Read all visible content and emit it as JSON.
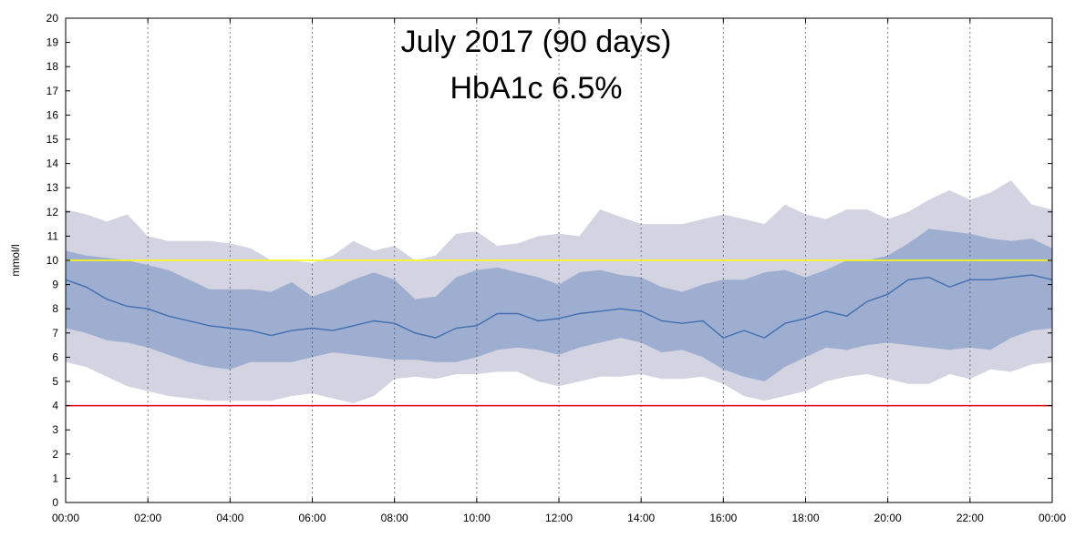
{
  "chart_data": {
    "type": "area",
    "title": "July 2017 (90 days)",
    "subtitle": "HbA1c 6.5%",
    "xlabel": "",
    "ylabel": "mmol/l",
    "xlim": [
      0,
      24
    ],
    "ylim": [
      0,
      20
    ],
    "x_ticks": [
      "00:00",
      "02:00",
      "04:00",
      "06:00",
      "08:00",
      "10:00",
      "12:00",
      "14:00",
      "16:00",
      "18:00",
      "20:00",
      "22:00",
      "00:00"
    ],
    "y_ticks": [
      0,
      1,
      2,
      3,
      4,
      5,
      6,
      7,
      8,
      9,
      10,
      11,
      12,
      13,
      14,
      15,
      16,
      17,
      18,
      19,
      20
    ],
    "grid": "vertical dotted lines every 2 hours",
    "reference_lines": [
      {
        "y": 10,
        "color": "#ffff00"
      },
      {
        "y": 4,
        "color": "#dd0000"
      }
    ],
    "colors": {
      "outer_band": "#d3d3e2",
      "inner_band": "#9eaed0",
      "median": "#3f6fb0"
    },
    "x": [
      0,
      0.5,
      1,
      1.5,
      2,
      2.5,
      3,
      3.5,
      4,
      4.5,
      5,
      5.5,
      6,
      6.5,
      7,
      7.5,
      8,
      8.5,
      9,
      9.5,
      10,
      10.5,
      11,
      11.5,
      12,
      12.5,
      13,
      13.5,
      14,
      14.5,
      15,
      15.5,
      16,
      16.5,
      17,
      17.5,
      18,
      18.5,
      19,
      19.5,
      20,
      20.5,
      21,
      21.5,
      22,
      22.5,
      23,
      23.5,
      24
    ],
    "series": [
      {
        "role": "outer_upper",
        "values": [
          12.1,
          11.9,
          11.6,
          11.9,
          11.0,
          10.8,
          10.8,
          10.8,
          10.7,
          10.5,
          10.0,
          10.0,
          9.9,
          10.2,
          10.8,
          10.4,
          10.6,
          10.0,
          10.2,
          11.1,
          11.2,
          10.6,
          10.7,
          11.0,
          11.1,
          11.0,
          12.1,
          11.8,
          11.5,
          11.5,
          11.5,
          11.7,
          11.9,
          11.7,
          11.5,
          12.3,
          11.9,
          11.7,
          12.1,
          12.1,
          11.7,
          12.0,
          12.5,
          12.9,
          12.5,
          12.8,
          13.3,
          12.3,
          12.1
        ]
      },
      {
        "role": "inner_upper",
        "values": [
          10.4,
          10.2,
          10.1,
          10.0,
          9.8,
          9.6,
          9.2,
          8.8,
          8.8,
          8.8,
          8.7,
          9.1,
          8.5,
          8.8,
          9.2,
          9.5,
          9.2,
          8.4,
          8.5,
          9.3,
          9.6,
          9.7,
          9.5,
          9.3,
          9.0,
          9.5,
          9.6,
          9.4,
          9.3,
          8.9,
          8.7,
          9.0,
          9.2,
          9.2,
          9.5,
          9.6,
          9.3,
          9.6,
          10.0,
          10.0,
          10.2,
          10.7,
          11.3,
          11.2,
          11.1,
          10.9,
          10.8,
          10.9,
          10.5
        ]
      },
      {
        "role": "median",
        "values": [
          9.2,
          8.9,
          8.4,
          8.1,
          8.0,
          7.7,
          7.5,
          7.3,
          7.2,
          7.1,
          6.9,
          7.1,
          7.2,
          7.1,
          7.3,
          7.5,
          7.4,
          7.0,
          6.8,
          7.2,
          7.3,
          7.8,
          7.8,
          7.5,
          7.6,
          7.8,
          7.9,
          8.0,
          7.9,
          7.5,
          7.4,
          7.5,
          6.8,
          7.1,
          6.8,
          7.4,
          7.6,
          7.9,
          7.7,
          8.3,
          8.6,
          9.2,
          9.3,
          8.9,
          9.2,
          9.2,
          9.3,
          9.4,
          9.2
        ]
      },
      {
        "role": "inner_lower",
        "values": [
          7.2,
          7.0,
          6.7,
          6.6,
          6.4,
          6.1,
          5.8,
          5.6,
          5.5,
          5.8,
          5.8,
          5.8,
          6.0,
          6.2,
          6.1,
          6.0,
          5.9,
          5.9,
          5.8,
          5.8,
          6.0,
          6.3,
          6.4,
          6.3,
          6.1,
          6.4,
          6.6,
          6.8,
          6.6,
          6.2,
          6.3,
          6.0,
          5.5,
          5.2,
          5.0,
          5.6,
          6.0,
          6.4,
          6.3,
          6.5,
          6.6,
          6.5,
          6.4,
          6.3,
          6.4,
          6.3,
          6.8,
          7.1,
          7.2
        ]
      },
      {
        "role": "outer_lower",
        "values": [
          5.8,
          5.6,
          5.2,
          4.8,
          4.6,
          4.4,
          4.3,
          4.2,
          4.2,
          4.2,
          4.2,
          4.4,
          4.5,
          4.3,
          4.1,
          4.4,
          5.1,
          5.2,
          5.1,
          5.3,
          5.3,
          5.4,
          5.4,
          5.0,
          4.8,
          5.0,
          5.2,
          5.2,
          5.3,
          5.1,
          5.1,
          5.2,
          4.9,
          4.4,
          4.2,
          4.4,
          4.6,
          5.0,
          5.2,
          5.3,
          5.1,
          4.9,
          4.9,
          5.3,
          5.1,
          5.5,
          5.4,
          5.7,
          5.8
        ]
      }
    ]
  }
}
